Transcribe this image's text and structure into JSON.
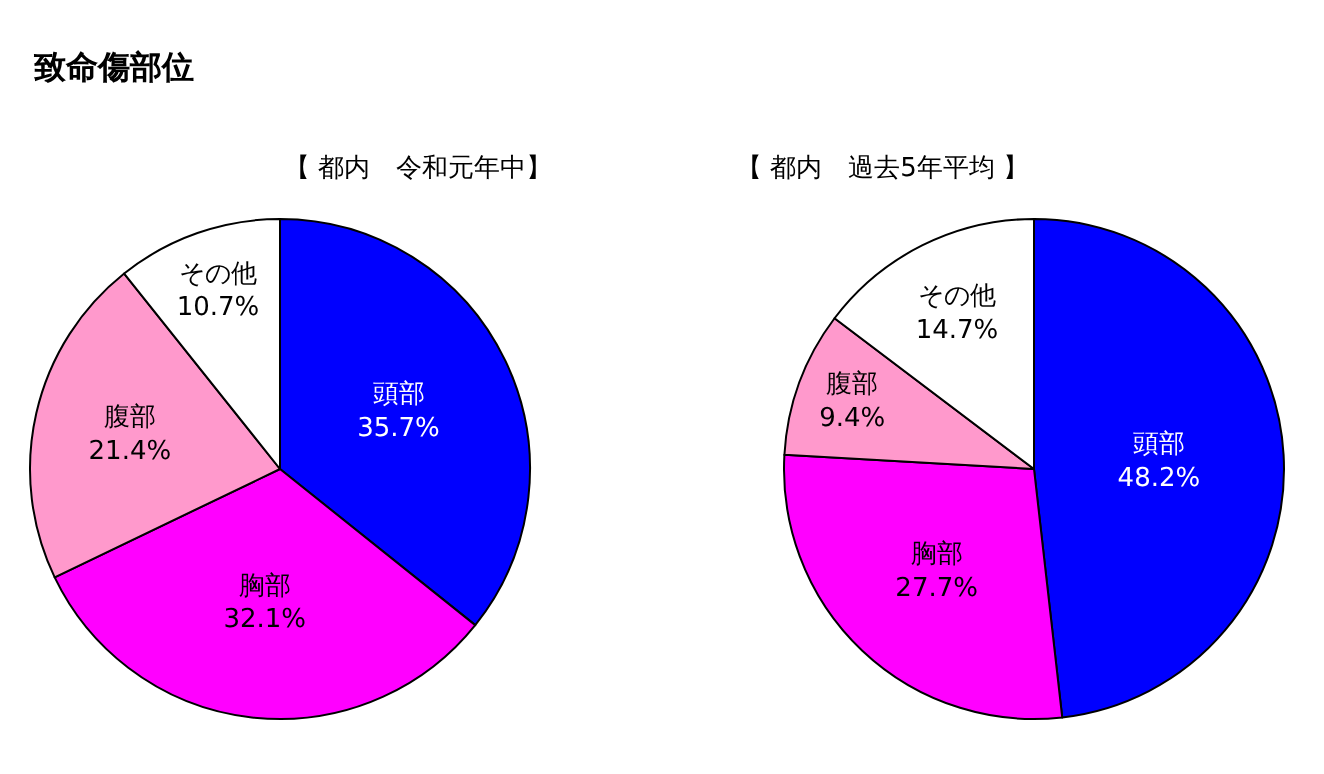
{
  "chart_data": [
    {
      "type": "pie",
      "title": "【 都内　令和元年中】",
      "annotations": [
        "致命傷部位"
      ],
      "categories": [
        "頭部",
        "胸部",
        "腹部",
        "その他"
      ],
      "values": [
        35.7,
        32.1,
        21.4,
        10.7
      ],
      "value_labels": [
        "35.7%",
        "32.1%",
        "21.4%",
        "10.7%"
      ],
      "colors": [
        "#0000ff",
        "#ff00ff",
        "#ff99cc",
        "#ffffff"
      ]
    },
    {
      "type": "pie",
      "title": "【 都内　過去5年平均 】",
      "categories": [
        "頭部",
        "胸部",
        "腹部",
        "その他"
      ],
      "values": [
        48.2,
        27.7,
        9.4,
        14.7
      ],
      "value_labels": [
        "48.2%",
        "27.7%",
        "9.4%",
        "14.7%"
      ],
      "colors": [
        "#0000ff",
        "#ff00ff",
        "#ff99cc",
        "#ffffff"
      ]
    }
  ]
}
